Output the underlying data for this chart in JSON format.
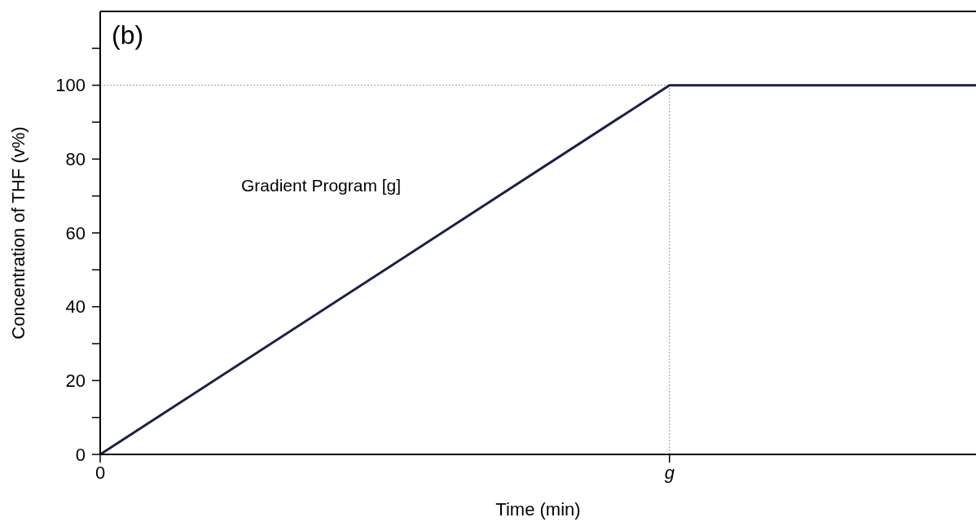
{
  "chart_data": {
    "type": "line",
    "title": "(b)",
    "xlabel": "Time (min)",
    "ylabel": "Concentration of THF (v%)",
    "categories": [
      "0",
      null,
      null,
      null,
      null,
      null,
      null,
      null,
      null,
      null,
      null,
      null,
      null,
      "g",
      null,
      null,
      null,
      null,
      null,
      null,
      null
    ],
    "series": [
      {
        "color": "#1b1f4b",
        "values": [
          0,
          null,
          null,
          null,
          null,
          null,
          null,
          null,
          null,
          null,
          null,
          null,
          null,
          100,
          null,
          null,
          null,
          null,
          null,
          null,
          100
        ]
      }
    ],
    "ylim": [
      0,
      120
    ],
    "yticks": [
      0,
      {
        "value": 10,
        "label": null
      },
      20,
      {
        "value": 30,
        "label": null
      },
      40,
      {
        "value": 50,
        "label": null
      },
      60,
      {
        "value": 70,
        "label": null
      },
      80,
      {
        "value": 90,
        "label": null
      },
      100,
      {
        "value": 110,
        "label": null
      }
    ],
    "ref_lines": [
      {
        "axis": "y",
        "value": 100,
        "color": "#999999",
        "line_style": "dotted"
      },
      {
        "axis": "x",
        "value": "g",
        "color": "#999999",
        "line_style": "dotted"
      }
    ],
    "annotations": [
      "Gradient Program [g]"
    ],
    "marker": "none",
    "line_style": "solid",
    "grid": false
  }
}
